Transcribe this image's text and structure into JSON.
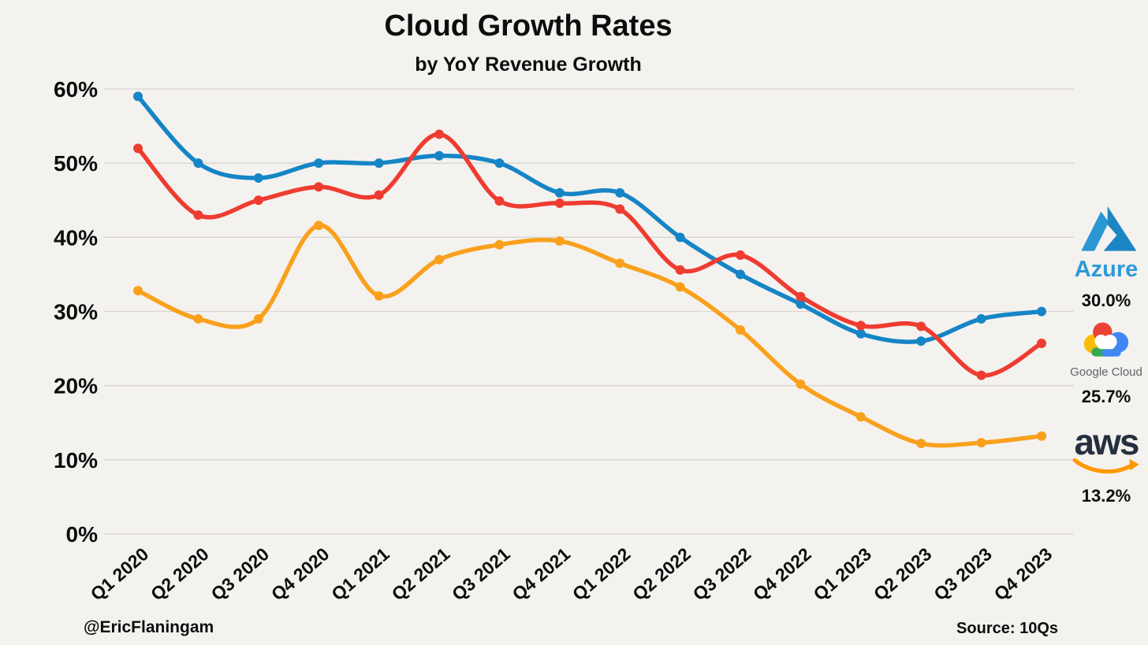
{
  "header": {
    "title": "Cloud Growth Rates",
    "subtitle": "by YoY Revenue Growth"
  },
  "chart_data": {
    "type": "line",
    "title": "Cloud Growth Rates",
    "subtitle": "by YoY Revenue Growth",
    "categories": [
      "Q1 2020",
      "Q2 2020",
      "Q3 2020",
      "Q4 2020",
      "Q1 2021",
      "Q2 2021",
      "Q3 2021",
      "Q4 2021",
      "Q1 2022",
      "Q2 2022",
      "Q3 2022",
      "Q4 2022",
      "Q1 2023",
      "Q2 2023",
      "Q3 2023",
      "Q4 2023"
    ],
    "series": [
      {
        "id": "azure",
        "name": "Azure",
        "color": "#1585c6",
        "values": [
          59,
          50,
          48,
          50,
          50,
          51,
          50,
          46,
          46,
          40,
          35,
          31,
          27,
          26,
          29,
          30
        ],
        "final_label": "30.0%"
      },
      {
        "id": "google-cloud",
        "name": "Google Cloud",
        "color": "#ef3c30",
        "values": [
          52,
          43,
          45,
          46.8,
          45.7,
          53.9,
          44.9,
          44.6,
          43.8,
          35.6,
          37.6,
          32,
          28.1,
          28,
          21.4,
          25.7
        ],
        "final_label": "25.7%"
      },
      {
        "id": "aws",
        "name": "AWS",
        "color": "#f9a11c",
        "values": [
          32.8,
          29,
          29,
          41.6,
          32.1,
          37,
          39,
          39.5,
          36.5,
          33.3,
          27.5,
          20.2,
          15.8,
          12.2,
          12.3,
          13.2
        ],
        "final_label": "13.2%"
      }
    ],
    "ylim": [
      0,
      60
    ],
    "yticks": [
      {
        "value": 60,
        "label": "60%"
      },
      {
        "value": 50,
        "label": "50%"
      },
      {
        "value": 40,
        "label": "40%"
      },
      {
        "value": 30,
        "label": "30%"
      },
      {
        "value": 20,
        "label": "20%"
      },
      {
        "value": 10,
        "label": "10%"
      },
      {
        "value": 0,
        "label": "0%"
      }
    ],
    "grid": "horizontal",
    "legend_position": "right"
  },
  "legend": {
    "azure": {
      "wordmark": "Azure",
      "value": "30.0%"
    },
    "google_cloud": {
      "wordmark": "Google Cloud",
      "value": "25.7%"
    },
    "aws": {
      "wordmark": "aws",
      "value": "13.2%"
    }
  },
  "footer": {
    "credit": "@EricFlaningam",
    "source": "Source: 10Qs"
  },
  "colors": {
    "background": "#f4f2ef",
    "gridline": "#d9d6d2",
    "text": "#0d0d0d",
    "azure_line": "#1585c6",
    "google_line": "#ef3c30",
    "aws_line": "#f9a11c",
    "azure_wordmark": "#2e9ad7",
    "google_wordmark": "#5f6368",
    "aws_wordmark": "#252f3e",
    "aws_swoosh": "#ff9900"
  }
}
